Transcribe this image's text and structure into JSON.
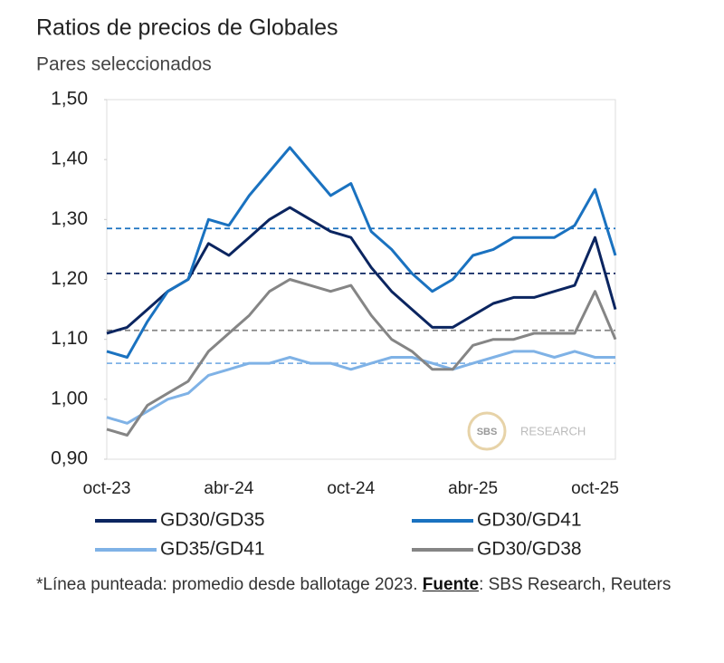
{
  "chart_data": {
    "type": "line",
    "title": "Ratios de precios de Globales",
    "subtitle": "Pares seleccionados",
    "categories": [
      "oct-23",
      null,
      null,
      null,
      null,
      null,
      "abr-24",
      null,
      null,
      null,
      null,
      null,
      "oct-24",
      null,
      null,
      null,
      null,
      null,
      "abr-25",
      null,
      null,
      null,
      null,
      null,
      "oct-25",
      null
    ],
    "series": [
      {
        "name": "GD30/GD35",
        "color": "#0b2560",
        "values": [
          1.11,
          1.12,
          1.15,
          1.18,
          1.2,
          1.26,
          1.24,
          1.27,
          1.3,
          1.32,
          1.3,
          1.28,
          1.27,
          1.22,
          1.18,
          1.15,
          1.12,
          1.12,
          1.14,
          1.16,
          1.17,
          1.17,
          1.18,
          1.19,
          1.27,
          1.15
        ]
      },
      {
        "name": "GD30/GD41",
        "color": "#1a72c0",
        "values": [
          1.08,
          1.07,
          1.13,
          1.18,
          1.2,
          1.3,
          1.29,
          1.34,
          1.38,
          1.42,
          1.38,
          1.34,
          1.36,
          1.28,
          1.25,
          1.21,
          1.18,
          1.2,
          1.24,
          1.25,
          1.27,
          1.27,
          1.27,
          1.29,
          1.35,
          1.24
        ]
      },
      {
        "name": "GD35/GD41",
        "color": "#7fb2e6",
        "values": [
          0.97,
          0.96,
          0.98,
          1.0,
          1.01,
          1.04,
          1.05,
          1.06,
          1.06,
          1.07,
          1.06,
          1.06,
          1.05,
          1.06,
          1.07,
          1.07,
          1.06,
          1.05,
          1.06,
          1.07,
          1.08,
          1.08,
          1.07,
          1.08,
          1.07,
          1.07
        ]
      },
      {
        "name": "GD30/GD38",
        "color": "#858585",
        "values": [
          0.95,
          0.94,
          0.99,
          1.01,
          1.03,
          1.08,
          1.11,
          1.14,
          1.18,
          1.2,
          1.19,
          1.18,
          1.19,
          1.14,
          1.1,
          1.08,
          1.05,
          1.05,
          1.09,
          1.1,
          1.1,
          1.11,
          1.11,
          1.11,
          1.18,
          1.1
        ]
      }
    ],
    "reference_lines": [
      {
        "value": 1.285,
        "color": "#1a72c0"
      },
      {
        "value": 1.21,
        "color": "#0b2560"
      },
      {
        "value": 1.115,
        "color": "#858585"
      },
      {
        "value": 1.06,
        "color": "#7fb2e6"
      }
    ],
    "ylim": [
      0.9,
      1.5
    ],
    "yticks": [
      {
        "value": 0.9,
        "label": "0,90"
      },
      {
        "value": 1.0,
        "label": "1,00"
      },
      {
        "value": 1.1,
        "label": "1,10"
      },
      {
        "value": 1.2,
        "label": "1,20"
      },
      {
        "value": 1.3,
        "label": "1,30"
      },
      {
        "value": 1.4,
        "label": "1,40"
      },
      {
        "value": 1.5,
        "label": "1,50"
      }
    ],
    "watermark": {
      "logo": "SBS",
      "text": "RESEARCH"
    },
    "note": "*Línea punteada: promedio desde ballotage 2023.",
    "source_label": "Fuente",
    "source": ": SBS Research, Reuters"
  }
}
